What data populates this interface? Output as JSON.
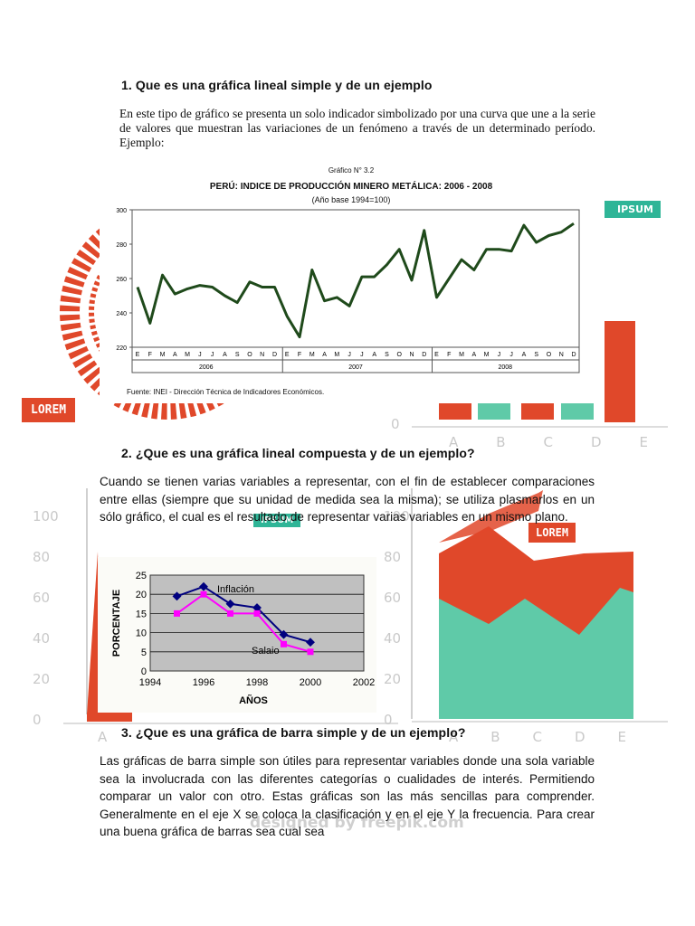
{
  "section1": {
    "heading": "1.  Que es una gráfica lineal simple y de un ejemplo",
    "paragraph": "En este tipo de gráfico se presenta un solo indicador simbolizado por una curva que une a la serie de valores que muestran las variaciones de un fenómeno a través de un determinado período. Ejemplo:"
  },
  "figure1": {
    "caption_number": "Gráfico N° 3.2",
    "source": "Fuente: INEI - Dirección Técnica de Indicadores Económicos."
  },
  "section2": {
    "heading": "2.  ¿Que es una gráfica lineal compuesta y de un ejemplo?",
    "paragraph": "Cuando se tienen varias variables a representar, con el fin de establecer comparaciones entre ellas (siempre que su unidad de medida sea la misma); se utiliza plasmarlos en un sólo gráfico, el cual es el resultado de representar varias variables en un mismo plano."
  },
  "section3": {
    "heading": "3.  ¿Que es una gráfica de barra simple y de un ejemplo?",
    "paragraph": "Las gráficas de barra simple son útiles para representar variables donde una sola variable sea la involucrada con las diferentes categorías o cualidades de interés. Permitiendo comparar un valor con otro. Estas gráficas son las más sencillas para comprender. Generalmente en el eje X se coloca la clasificación y en el eje Y la frecuencia. Para crear una buena gráfica de barras sea cual sea"
  },
  "background": {
    "ipsum": "IPSUM",
    "lorem": "LOREM",
    "watermark": "designed by freepik.com",
    "left_ticks": [
      "100",
      "80",
      "60",
      "40",
      "20",
      "0"
    ],
    "right_ticks": [
      "100",
      "80",
      "60",
      "40",
      "20",
      "0"
    ],
    "top_right_zero": "0",
    "letters": [
      "A",
      "B",
      "C",
      "D",
      "E"
    ],
    "colors": {
      "red": "#e0482a",
      "green": "#2fb597",
      "light_green": "#5fcaa8"
    }
  },
  "chart_data": [
    {
      "type": "line",
      "title": "PERÚ: INDICE DE PRODUCCIÓN MINERO METÁLICA: 2006 - 2008",
      "subtitle": "(Año base 1994=100)",
      "x_month_labels": [
        "E",
        "F",
        "M",
        "A",
        "M",
        "J",
        "J",
        "A",
        "S",
        "O",
        "N",
        "D",
        "E",
        "F",
        "M",
        "A",
        "M",
        "J",
        "J",
        "A",
        "S",
        "O",
        "N",
        "D",
        "E",
        "F",
        "M",
        "A",
        "M",
        "J",
        "J",
        "A",
        "S",
        "O",
        "N",
        "D"
      ],
      "x_year_labels": [
        "2006",
        "2007",
        "2008"
      ],
      "y_ticks": [
        220,
        240,
        260,
        280,
        300
      ],
      "ylim": [
        220,
        300
      ],
      "series": [
        {
          "color": "#1f4a1b",
          "values": [
            255,
            234,
            262,
            251,
            254,
            256,
            255,
            250,
            246,
            258,
            255,
            255,
            238,
            226,
            265,
            247,
            249,
            244,
            261,
            261,
            268,
            277,
            259,
            288,
            249,
            260,
            271,
            265,
            277,
            277,
            276,
            291,
            281,
            285,
            287,
            292
          ]
        }
      ],
      "grid": false
    },
    {
      "type": "line",
      "ylabel": "PORCENTAJE",
      "xlabel": "AÑOS",
      "x_ticks": [
        1994,
        1996,
        1998,
        2000,
        2002
      ],
      "y_ticks": [
        0,
        5,
        10,
        15,
        20,
        25
      ],
      "xlim": [
        1994,
        2002
      ],
      "ylim": [
        0,
        25
      ],
      "annotations": [
        "Inflación",
        "Salaio"
      ],
      "background_color": "#c0c0c0",
      "series": [
        {
          "color": "#00007f",
          "x": [
            1995,
            1996,
            1997,
            1998,
            1999,
            2000
          ],
          "values": [
            19.5,
            22,
            17.5,
            16.5,
            9.5,
            7.5
          ]
        },
        {
          "color": "#ff00ff",
          "x": [
            1995,
            1996,
            1997,
            1998,
            1999,
            2000
          ],
          "values": [
            15,
            20,
            15,
            15,
            7,
            5
          ]
        }
      ],
      "grid": true
    }
  ]
}
